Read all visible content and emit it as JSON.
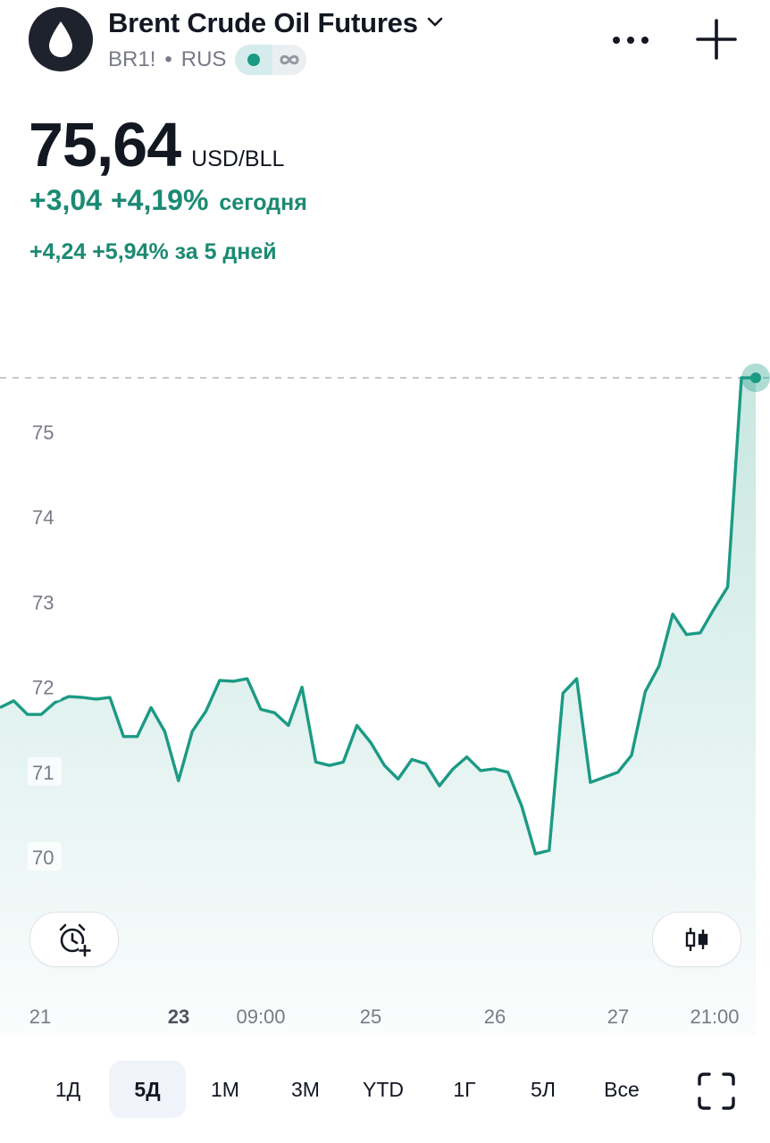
{
  "header": {
    "title": "Brent Crude Oil Futures",
    "ticker": "BR1!",
    "separator": "•",
    "exchange": "RUS",
    "icons": {
      "logo": "oil-drop-icon",
      "dropdown": "chevron-down-icon",
      "status": "market-open-dot",
      "infinity": "infinity-icon",
      "more": "more-dots-icon",
      "add": "plus-icon"
    }
  },
  "quote": {
    "price": "75,64",
    "unit": "USD/BLL",
    "change_today_abs": "+3,04",
    "change_today_pct": "+4,19%",
    "change_today_label": "сегодня",
    "change_5d": "+4,24 +5,94% за 5 дней"
  },
  "colors": {
    "accent": "#1b9a84",
    "text": "#131722",
    "muted": "#787b86",
    "positive": "#1b8a73"
  },
  "chart_data": {
    "type": "area",
    "y_ticks": [
      "75",
      "74",
      "73",
      "72",
      "71",
      "70"
    ],
    "y_tick_values": [
      75,
      74,
      73,
      72,
      71,
      70
    ],
    "x_ticks": [
      {
        "label": "21",
        "bold": false
      },
      {
        "label": "23",
        "bold": true
      },
      {
        "label": "09:00",
        "bold": false
      },
      {
        "label": "25",
        "bold": false
      },
      {
        "label": "26",
        "bold": false
      },
      {
        "label": "27",
        "bold": false
      },
      {
        "label": "21:00",
        "bold": false
      }
    ],
    "ylim": [
      69.3,
      76.2
    ],
    "last_value": 75.64,
    "values": [
      71.76,
      71.84,
      71.68,
      71.68,
      71.82,
      71.89,
      71.88,
      71.86,
      71.88,
      71.42,
      71.42,
      71.76,
      71.48,
      70.9,
      71.48,
      71.72,
      72.08,
      72.07,
      72.1,
      71.74,
      71.7,
      71.55,
      72.0,
      71.12,
      71.08,
      71.12,
      71.55,
      71.35,
      71.08,
      70.92,
      71.15,
      71.1,
      70.84,
      71.04,
      71.18,
      71.02,
      71.04,
      71.0,
      70.6,
      70.04,
      70.08,
      71.93,
      72.1,
      70.88,
      70.94,
      71.0,
      71.2,
      71.95,
      72.25,
      72.86,
      72.62,
      72.64,
      72.92,
      73.18,
      75.64,
      75.64,
      75.64
    ],
    "grid": false
  },
  "buttons": {
    "alert": "alarm-add-icon",
    "chart_type": "candles-icon",
    "fullscreen": "fullscreen-icon"
  },
  "tabs": [
    {
      "label": "1Д",
      "active": false
    },
    {
      "label": "5Д",
      "active": true
    },
    {
      "label": "1М",
      "active": false
    },
    {
      "label": "3М",
      "active": false
    },
    {
      "label": "YTD",
      "active": false
    },
    {
      "label": "1Г",
      "active": false
    },
    {
      "label": "5Л",
      "active": false
    },
    {
      "label": "Все",
      "active": false
    }
  ]
}
